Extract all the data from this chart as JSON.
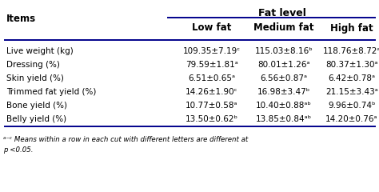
{
  "title": "Fat level",
  "col_headers": [
    "Low fat",
    "Medium fat",
    "High fat"
  ],
  "row_headers": [
    "Live weight (kg)",
    "Dressing (%)",
    "Skin yield (%)",
    "Trimmed fat yield (%)",
    "Bone yield (%)",
    "Belly yield (%)"
  ],
  "data": [
    [
      "109.35±7.19ᶜ",
      "115.03±8.16ᵇ",
      "118.76±8.72ᵃ"
    ],
    [
      "79.59±1.81ᵃ",
      "80.01±1.26ᵃ",
      "80.37±1.30ᵃ"
    ],
    [
      "6.51±0.65ᵃ",
      "6.56±0.87ᵃ",
      "6.42±0.78ᵃ"
    ],
    [
      "14.26±1.90ᶜ",
      "16.98±3.47ᵇ",
      "21.15±3.43ᵃ"
    ],
    [
      "10.77±0.58ᵃ",
      "10.40±0.88ᵃᵇ",
      "9.96±0.74ᵇ"
    ],
    [
      "13.50±0.62ᵇ",
      "13.85±0.84ᵃᵇ",
      "14.20±0.76ᵃ"
    ]
  ],
  "footnote_line1": "ᵃ⁻ᶜ Means within a row in each cut with different letters are different at",
  "footnote_line2": "p <0.05.",
  "line_color": "#00008B",
  "bg_color": "#ffffff",
  "text_color": "#000000",
  "items_label": "Items"
}
